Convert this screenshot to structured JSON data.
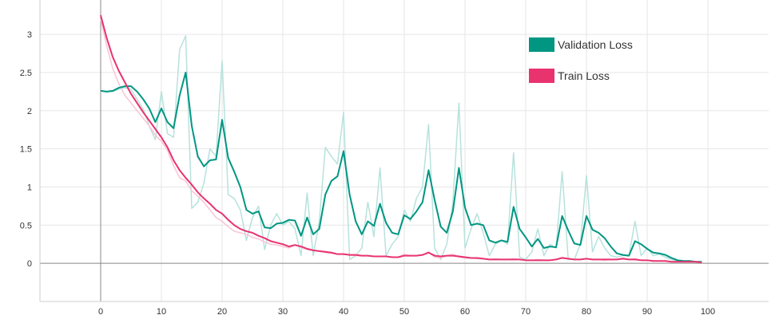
{
  "chart_data": {
    "type": "line",
    "title": "",
    "xlabel": "",
    "ylabel": "",
    "xlim": [
      -10,
      110
    ],
    "ylim": [
      -0.5,
      3.45
    ],
    "x_ticks": [
      "0",
      "10",
      "20",
      "30",
      "40",
      "50",
      "60",
      "70",
      "80",
      "90",
      "100"
    ],
    "y_ticks": [
      "0",
      "0.5",
      "1",
      "1.5",
      "2",
      "2.5",
      "3"
    ],
    "grid": true,
    "legend_position": "top-right",
    "series": [
      {
        "name": "Validation Loss",
        "color": "#009682",
        "raw_color": "#b7e2dc",
        "raw_values": [
          2.26,
          2.25,
          2.25,
          2.28,
          2.3,
          2.28,
          2.15,
          2.02,
          1.8,
          1.62,
          2.25,
          1.7,
          1.65,
          2.8,
          2.98,
          0.72,
          0.8,
          1.05,
          1.5,
          1.4,
          2.65,
          0.9,
          0.85,
          0.7,
          0.3,
          0.6,
          0.75,
          0.18,
          0.5,
          0.65,
          0.5,
          0.55,
          0.45,
          0.1,
          0.92,
          0.1,
          0.55,
          1.52,
          1.4,
          1.3,
          1.98,
          0.05,
          0.1,
          0.2,
          0.8,
          0.35,
          1.25,
          0.1,
          0.25,
          0.35,
          0.7,
          0.55,
          0.85,
          1.0,
          1.82,
          0.2,
          0.05,
          0.25,
          0.8,
          2.1,
          0.2,
          0.45,
          0.65,
          0.4,
          0.1,
          0.25,
          0.3,
          0.25,
          1.45,
          0.08,
          0.05,
          0.15,
          0.45,
          0.1,
          0.25,
          0.2,
          1.2,
          0.05,
          0.05,
          0.25,
          1.15,
          0.15,
          0.35,
          0.2,
          0.1,
          0.08,
          0.1,
          0.1,
          0.55,
          0.1,
          0.2,
          0.1,
          0.12,
          0.08,
          0.05,
          0.03,
          0.02,
          0.02,
          0.02,
          0.01
        ],
        "values": [
          2.26,
          2.25,
          2.26,
          2.3,
          2.32,
          2.32,
          2.25,
          2.15,
          2.03,
          1.85,
          2.03,
          1.85,
          1.77,
          2.2,
          2.5,
          1.8,
          1.4,
          1.27,
          1.35,
          1.36,
          1.88,
          1.38,
          1.2,
          1.0,
          0.7,
          0.65,
          0.68,
          0.47,
          0.46,
          0.52,
          0.53,
          0.57,
          0.56,
          0.36,
          0.6,
          0.38,
          0.45,
          0.9,
          1.08,
          1.14,
          1.47,
          0.9,
          0.55,
          0.38,
          0.55,
          0.49,
          0.78,
          0.53,
          0.4,
          0.38,
          0.63,
          0.58,
          0.68,
          0.8,
          1.22,
          0.83,
          0.48,
          0.4,
          0.68,
          1.25,
          0.73,
          0.5,
          0.52,
          0.5,
          0.3,
          0.27,
          0.3,
          0.28,
          0.74,
          0.45,
          0.34,
          0.22,
          0.32,
          0.2,
          0.22,
          0.21,
          0.62,
          0.43,
          0.26,
          0.24,
          0.62,
          0.44,
          0.4,
          0.33,
          0.22,
          0.13,
          0.11,
          0.1,
          0.29,
          0.25,
          0.19,
          0.14,
          0.13,
          0.11,
          0.07,
          0.04,
          0.03,
          0.03,
          0.02,
          0.02
        ]
      },
      {
        "name": "Train Loss",
        "color": "#e8336f",
        "raw_color": "#f9c4d6",
        "raw_values": [
          3.2,
          2.85,
          2.55,
          2.35,
          2.2,
          2.1,
          2.0,
          1.9,
          1.8,
          1.68,
          1.6,
          1.48,
          1.28,
          1.12,
          1.08,
          0.95,
          0.88,
          0.8,
          0.7,
          0.6,
          0.55,
          0.48,
          0.42,
          0.4,
          0.38,
          0.34,
          0.32,
          0.28,
          0.25,
          0.24,
          0.22,
          0.2,
          0.24,
          0.21,
          0.18,
          0.17,
          0.16,
          0.14,
          0.13,
          0.12,
          0.12,
          0.11,
          0.1,
          0.1,
          0.1,
          0.09,
          0.09,
          0.09,
          0.08,
          0.08,
          0.12,
          0.1,
          0.1,
          0.11,
          0.15,
          0.08,
          0.07,
          0.1,
          0.12,
          0.08,
          0.07,
          0.07,
          0.06,
          0.06,
          0.05,
          0.06,
          0.05,
          0.05,
          0.06,
          0.05,
          0.04,
          0.04,
          0.05,
          0.04,
          0.04,
          0.05,
          0.08,
          0.06,
          0.05,
          0.05,
          0.06,
          0.05,
          0.05,
          0.04,
          0.05,
          0.05,
          0.07,
          0.05,
          0.06,
          0.04,
          0.04,
          0.03,
          0.03,
          0.03,
          0.02,
          0.02,
          0.02,
          0.02,
          0.02,
          0.01
        ],
        "values": [
          3.25,
          2.95,
          2.7,
          2.52,
          2.37,
          2.22,
          2.1,
          1.98,
          1.87,
          1.76,
          1.65,
          1.52,
          1.35,
          1.22,
          1.12,
          1.03,
          0.93,
          0.85,
          0.78,
          0.7,
          0.65,
          0.57,
          0.5,
          0.45,
          0.42,
          0.4,
          0.36,
          0.33,
          0.29,
          0.27,
          0.25,
          0.22,
          0.24,
          0.22,
          0.19,
          0.17,
          0.16,
          0.15,
          0.14,
          0.12,
          0.12,
          0.11,
          0.11,
          0.1,
          0.1,
          0.09,
          0.09,
          0.09,
          0.08,
          0.08,
          0.1,
          0.1,
          0.1,
          0.11,
          0.14,
          0.1,
          0.09,
          0.1,
          0.1,
          0.09,
          0.08,
          0.07,
          0.07,
          0.06,
          0.05,
          0.05,
          0.05,
          0.05,
          0.05,
          0.05,
          0.04,
          0.04,
          0.04,
          0.04,
          0.04,
          0.05,
          0.07,
          0.06,
          0.05,
          0.05,
          0.06,
          0.05,
          0.05,
          0.05,
          0.05,
          0.05,
          0.06,
          0.05,
          0.05,
          0.04,
          0.04,
          0.03,
          0.03,
          0.03,
          0.02,
          0.02,
          0.02,
          0.02,
          0.02,
          0.01
        ]
      }
    ]
  }
}
